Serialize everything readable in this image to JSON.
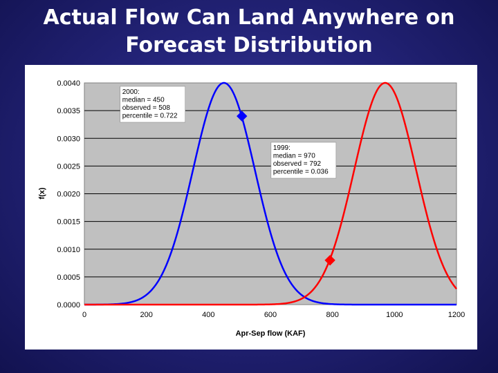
{
  "slide": {
    "title_line1": "Actual Flow Can Land Anywhere on",
    "title_line2": "Forecast Distribution"
  },
  "chart_data": {
    "type": "line",
    "title": "",
    "xlabel": "Apr-Sep flow (KAF)",
    "ylabel": "f(x)",
    "xlim": [
      0,
      1200
    ],
    "ylim": [
      0,
      0.004
    ],
    "x_ticks": [
      "0",
      "200",
      "400",
      "600",
      "800",
      "1000",
      "1200"
    ],
    "y_ticks": [
      "0.0000",
      "0.0005",
      "0.0010",
      "0.0015",
      "0.0020",
      "0.0025",
      "0.0030",
      "0.0035",
      "0.0040"
    ],
    "grid": "horizontal",
    "plot_background": "#c0c0c0",
    "series": [
      {
        "color": "#0000ff",
        "median": 450,
        "peak": 0.004,
        "sigma": 100,
        "observed": {
          "x": 508,
          "y": 0.0034
        },
        "annotation": [
          "2000:",
          "median = 450",
          "observed = 508",
          "percentile = 0.722"
        ]
      },
      {
        "color": "#ff0000",
        "median": 970,
        "peak": 0.004,
        "sigma": 100,
        "observed": {
          "x": 792,
          "y": 0.0008
        },
        "annotation": [
          "1999:",
          "median = 970",
          "observed = 792",
          "percentile = 0.036"
        ]
      }
    ]
  }
}
